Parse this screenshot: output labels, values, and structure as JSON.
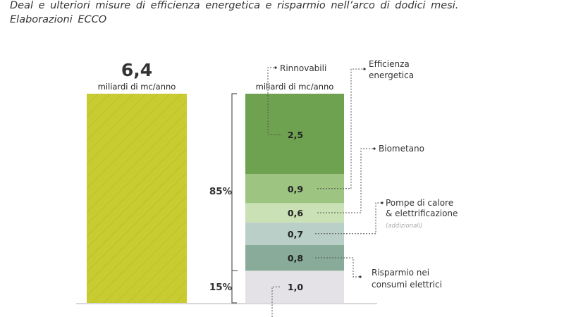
{
  "caption": {
    "line1": "Deal e ulteriori misure di efficienza energetica e risparmio nell’arco di dodici mesi.",
    "line2": "Elaborazioni ECCO"
  },
  "chart_data": {
    "type": "bar",
    "unit": "miliardi di mc/anno",
    "total": {
      "value_label": "6,4",
      "value": 6.4,
      "unit": "miliardi di mc/anno",
      "color": "#c9cc30",
      "hatched": true
    },
    "stack": {
      "unit": "miliardi di mc/anno",
      "segments": [
        {
          "value": 1.0,
          "label": "1,0",
          "color": "#e4e2e6"
        },
        {
          "value": 0.8,
          "label": "0,8",
          "color": "#88ac99",
          "name": "Risparmio nei consumi elettrici"
        },
        {
          "value": 0.7,
          "label": "0,7",
          "color": "#b9cfc7",
          "name": "Pompe di calore & elettrificazione (addizionali)"
        },
        {
          "value": 0.6,
          "label": "0,6",
          "color": "#c9e1b5",
          "name": "Biometano"
        },
        {
          "value": 0.9,
          "label": "0,9",
          "color": "#9dc480",
          "name": "Efficienza energetica"
        },
        {
          "value": 2.5,
          "label": "2,5",
          "color": "#6fa250",
          "name": "Rinnovabili"
        }
      ]
    },
    "brackets": [
      {
        "label": "85%"
      },
      {
        "label": "15%"
      }
    ],
    "annotations": {
      "rinnovabili": "Rinnovabili",
      "efficienza_1": "Efficienza",
      "efficienza_2": "energetica",
      "biometano": "Biometano",
      "pompe_1": "Pompe di calore",
      "pompe_2": "& elettrificazione",
      "pompe_3": "(addizionali)",
      "risparmio_1": "Risparmio nei",
      "risparmio_2": "consumi elettrici"
    }
  }
}
